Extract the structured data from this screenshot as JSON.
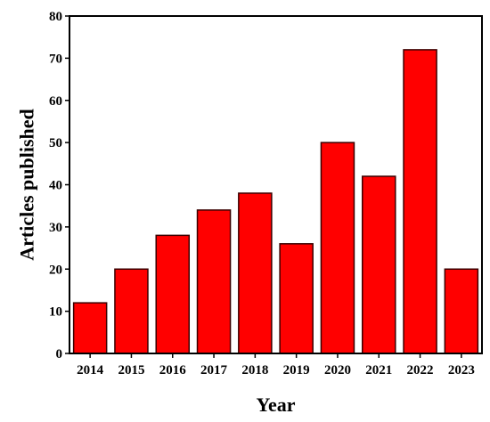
{
  "chart_data": {
    "type": "bar",
    "categories": [
      "2014",
      "2015",
      "2016",
      "2017",
      "2018",
      "2019",
      "2020",
      "2021",
      "2022",
      "2023"
    ],
    "values": [
      12,
      20,
      28,
      34,
      38,
      26,
      50,
      42,
      72,
      20
    ],
    "title": "",
    "xlabel": "Year",
    "ylabel": "Articles published",
    "ylim": [
      0,
      80
    ],
    "yticks": [
      0,
      10,
      20,
      30,
      40,
      50,
      60,
      70,
      80
    ],
    "grid": false,
    "legend": "none",
    "bar_color": "#ff0000",
    "bar_edge_color": "#3a0000"
  }
}
